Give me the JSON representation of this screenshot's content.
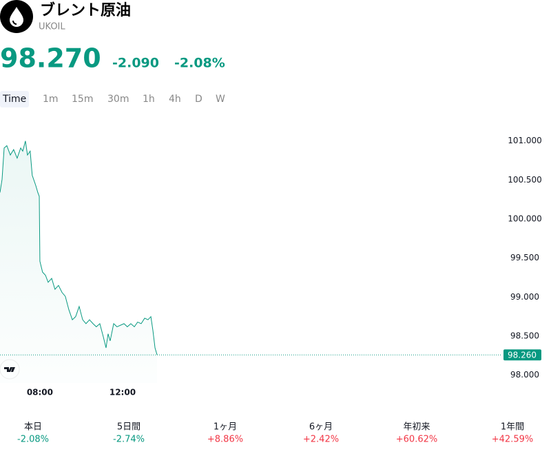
{
  "header": {
    "title": "ブレント原油",
    "symbol": "UKOIL"
  },
  "quote": {
    "price": "98.270",
    "change": "-2.090",
    "change_percent": "-2.08%",
    "color": "#089981"
  },
  "intervals": [
    "Time",
    "1m",
    "15m",
    "30m",
    "1h",
    "4h",
    "D",
    "W"
  ],
  "chart_data": {
    "type": "line",
    "color": "#089981",
    "x": [
      6.07,
      6.17,
      6.27,
      6.4,
      6.57,
      6.73,
      6.9,
      7.07,
      7.17,
      7.3,
      7.4,
      7.53,
      7.63,
      7.8,
      7.9,
      7.97,
      8.0,
      8.13,
      8.27,
      8.4,
      8.57,
      8.73,
      8.9,
      9.07,
      9.23,
      9.4,
      9.57,
      9.73,
      9.9,
      10.07,
      10.23,
      10.4,
      10.57,
      10.73,
      10.9,
      11.07,
      11.2,
      11.3,
      11.4,
      11.57,
      11.73,
      11.9,
      12.07,
      12.23,
      12.4,
      12.57,
      12.73,
      12.9,
      13.07,
      13.23,
      13.37,
      13.47,
      13.57,
      13.67
    ],
    "values": [
      100.34,
      100.51,
      100.91,
      100.94,
      100.82,
      100.89,
      100.78,
      100.91,
      100.87,
      101.0,
      100.82,
      100.87,
      100.56,
      100.43,
      100.34,
      100.29,
      99.46,
      99.32,
      99.28,
      99.19,
      99.24,
      99.1,
      99.15,
      99.06,
      99.01,
      98.84,
      98.71,
      98.75,
      98.88,
      98.71,
      98.66,
      98.71,
      98.66,
      98.62,
      98.66,
      98.49,
      98.35,
      98.53,
      98.44,
      98.66,
      98.62,
      98.64,
      98.66,
      98.62,
      98.66,
      98.62,
      98.68,
      98.66,
      98.73,
      98.71,
      98.75,
      98.57,
      98.35,
      98.26
    ],
    "xlim": [
      6.07,
      30.33
    ],
    "xticks": [
      {
        "value": 8,
        "label": "08:00"
      },
      {
        "value": 12,
        "label": "12:00"
      }
    ],
    "ylim": [
      97.9,
      101.35
    ],
    "yticks": [
      {
        "value": 98,
        "label": "98.000"
      },
      {
        "value": 98.5,
        "label": "98.500"
      },
      {
        "value": 99,
        "label": "99.000"
      },
      {
        "value": 99.5,
        "label": "99.500"
      },
      {
        "value": 100,
        "label": "100.000"
      },
      {
        "value": 100.5,
        "label": "100.500"
      },
      {
        "value": 101,
        "label": "101.000"
      }
    ],
    "last_price": {
      "value": 98.26,
      "label": "98.260"
    }
  },
  "performance": [
    {
      "label": "本日",
      "value": "-2.08%",
      "color": "#089981"
    },
    {
      "label": "5日間",
      "value": "-2.74%",
      "color": "#089981"
    },
    {
      "label": "1ヶ月",
      "value": "+8.86%",
      "color": "#f23645"
    },
    {
      "label": "6ヶ月",
      "value": "+2.42%",
      "color": "#f23645"
    },
    {
      "label": "年初来",
      "value": "+60.62%",
      "color": "#f23645"
    },
    {
      "label": "1年間",
      "value": "+42.59%",
      "color": "#f23645"
    }
  ]
}
